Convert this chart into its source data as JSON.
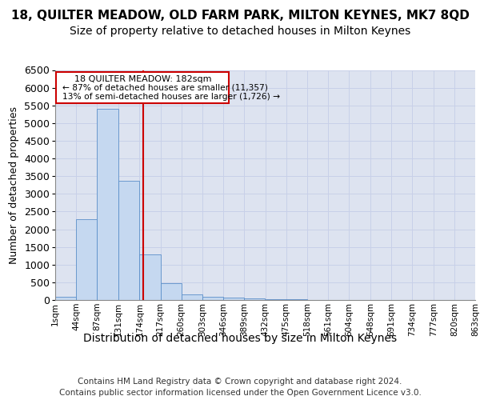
{
  "title": "18, QUILTER MEADOW, OLD FARM PARK, MILTON KEYNES, MK7 8QD",
  "subtitle": "Size of property relative to detached houses in Milton Keynes",
  "xlabel": "Distribution of detached houses by size in Milton Keynes",
  "ylabel": "Number of detached properties",
  "footer_line1": "Contains HM Land Registry data © Crown copyright and database right 2024.",
  "footer_line2": "Contains public sector information licensed under the Open Government Licence v3.0.",
  "bar_values": [
    80,
    2280,
    5400,
    3380,
    1290,
    475,
    160,
    90,
    60,
    50,
    30,
    20,
    10,
    5,
    3,
    2,
    2,
    1,
    1,
    0
  ],
  "bin_edges": [
    1,
    44,
    87,
    131,
    174,
    217,
    260,
    303,
    346,
    389,
    432,
    475,
    518,
    561,
    604,
    648,
    691,
    734,
    777,
    820,
    863
  ],
  "tick_labels": [
    "1sqm",
    "44sqm",
    "87sqm",
    "131sqm",
    "174sqm",
    "217sqm",
    "260sqm",
    "303sqm",
    "346sqm",
    "389sqm",
    "432sqm",
    "475sqm",
    "518sqm",
    "561sqm",
    "604sqm",
    "648sqm",
    "691sqm",
    "734sqm",
    "777sqm",
    "820sqm",
    "863sqm"
  ],
  "bar_color": "#c5d8f0",
  "bar_edgecolor": "#5b8fc9",
  "vline_x": 182,
  "vline_color": "#cc0000",
  "ann_line1": "18 QUILTER MEADOW: 182sqm",
  "ann_line2": "← 87% of detached houses are smaller (11,357)",
  "ann_line3": "13% of semi-detached houses are larger (1,726) →",
  "ann_box_edge": "#cc0000",
  "ann_box_fill": "#ffffff",
  "ylim_max": 6500,
  "yticks": [
    0,
    500,
    1000,
    1500,
    2000,
    2500,
    3000,
    3500,
    4000,
    4500,
    5000,
    5500,
    6000,
    6500
  ],
  "grid_color": "#c8d0e8",
  "bg_color": "#dde3f0",
  "title_fontsize": 11,
  "subtitle_fontsize": 10,
  "ylabel_fontsize": 9,
  "xlabel_fontsize": 10,
  "tick_fontsize": 7.5,
  "ytick_fontsize": 9,
  "ann_fontsize": 8,
  "footer_fontsize": 7.5
}
